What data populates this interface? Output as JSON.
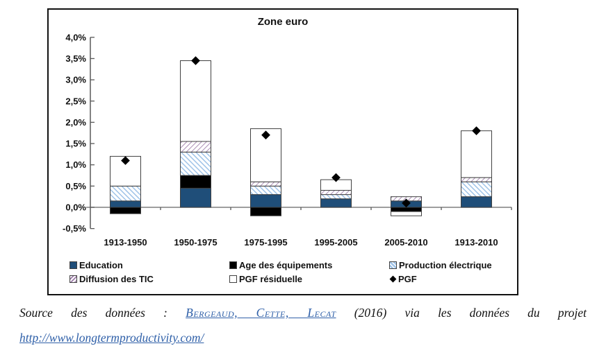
{
  "chart_data": {
    "type": "bar",
    "stacked": true,
    "title": "Zone euro",
    "categories": [
      "1913-1950",
      "1950-1975",
      "1975-1995",
      "1995-2005",
      "2005-2010",
      "1913-2010"
    ],
    "unit": "%",
    "series": [
      {
        "name": "Education",
        "style": "solid",
        "color": "#1F4E79",
        "values": [
          0.15,
          0.45,
          0.3,
          0.2,
          0.15,
          0.25
        ]
      },
      {
        "name": "Age des équipements",
        "style": "solid",
        "color": "#000000",
        "values": [
          -0.15,
          0.3,
          -0.2,
          0,
          -0.1,
          0
        ]
      },
      {
        "name": "Production électrique",
        "style": "hatch",
        "color": "#9FC3E8",
        "hatch_angle": 135,
        "values": [
          0.35,
          0.55,
          0.2,
          0.1,
          0,
          0.35
        ]
      },
      {
        "name": "Diffusion des TIC",
        "style": "hatch",
        "color": "#9C7BA8",
        "hatch_angle": 45,
        "values": [
          0,
          0.25,
          0.1,
          0.1,
          0.1,
          0.1
        ]
      },
      {
        "name": "PGF résiduelle",
        "style": "outline",
        "color": "#FFFFFF",
        "values": [
          0.7,
          1.9,
          1.25,
          0.25,
          -0.1,
          1.1
        ]
      }
    ],
    "marker_series": {
      "name": "PGF",
      "marker": "diamond",
      "color": "#000000",
      "values": [
        1.1,
        3.45,
        1.7,
        0.7,
        0.1,
        1.8
      ]
    },
    "ylim": [
      -0.5,
      4.0
    ],
    "y_step": 0.5,
    "y_tick_labels": [
      "4,0%",
      "3,5%",
      "3,0%",
      "2,5%",
      "2,0%",
      "1,5%",
      "1,0%",
      "0,5%",
      "0,0%",
      "-0,5%"
    ],
    "legend_position": "bottom",
    "gridlines": false
  },
  "source": {
    "prefix": "Source des données :",
    "authors_link": "Bergeaud, Cette, Lecat",
    "middle": "(2016) via les données du projet",
    "url": "http://www.longtermproductivity.com/"
  }
}
